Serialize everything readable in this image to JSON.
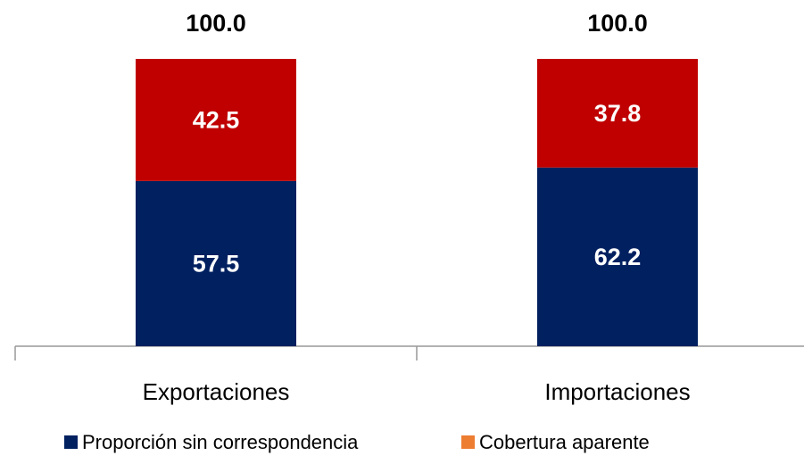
{
  "chart_data": {
    "type": "stacked_bar",
    "categories": [
      "Exportaciones",
      "Importaciones"
    ],
    "series": [
      {
        "name": "Proporción sin correspondencia",
        "color": "#002060",
        "values": [
          57.5,
          62.2
        ]
      },
      {
        "name": "Cobertura aparente",
        "color": "#c00000",
        "legend_color": "#ed7d31",
        "values": [
          42.5,
          37.8
        ]
      }
    ],
    "totals": [
      100,
      100
    ],
    "totals_labels": [
      "100.0",
      "100.0"
    ],
    "ylim": [
      0,
      100
    ]
  }
}
